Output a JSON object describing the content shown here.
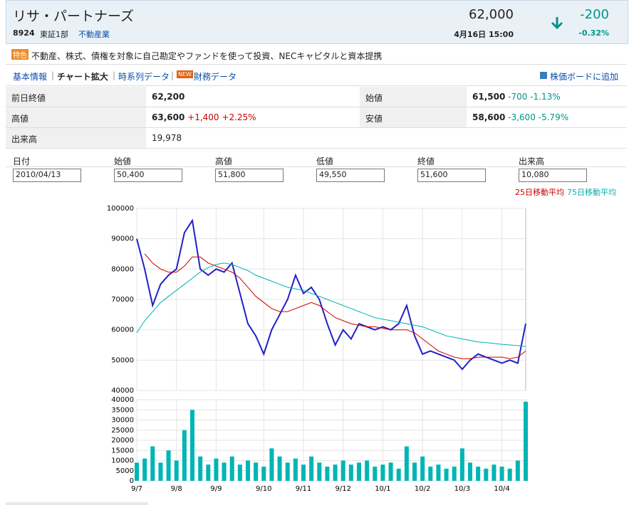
{
  "header": {
    "name": "リサ・パートナーズ",
    "code": "8924",
    "market": "東証1部",
    "industry": "不動産業",
    "price": "62,000",
    "change": "-200",
    "datetime": "4月16日 15:00",
    "change_pct": "-0.32%"
  },
  "feature": {
    "badge": "特色",
    "text": "不動産、株式、債権を対象に自己勘定やファンドを使って投資、NECキャピタルと資本提携"
  },
  "nav": {
    "links": [
      "基本情報",
      "チャート拡大",
      "時系列データ",
      "財務データ"
    ],
    "new_badge": "NEW",
    "board": "株価ボードに追加"
  },
  "quote_table": {
    "rows": [
      [
        {
          "label": "前日終値",
          "value": "62,200"
        },
        {
          "label": "始値",
          "value": "61,500",
          "change": "-700",
          "change_pct": "-1.13%"
        }
      ],
      [
        {
          "label": "高値",
          "value": "63,600",
          "change": "+1,400",
          "change_pct": "+2.25%"
        },
        {
          "label": "安値",
          "value": "58,600",
          "change": "-3,600",
          "change_pct": "-5.79%"
        }
      ],
      [
        {
          "label": "出来高",
          "value": "19,978"
        }
      ]
    ]
  },
  "ohlc_form": {
    "headers": [
      "日付",
      "始値",
      "高値",
      "低値",
      "終値",
      "出来高"
    ],
    "values": [
      "2010/04/13",
      "50,400",
      "51,800",
      "49,550",
      "51,600",
      "10,080"
    ]
  },
  "chart_data": [
    {
      "type": "line",
      "categories": [
        "9/7",
        null,
        null,
        null,
        null,
        "9/8",
        null,
        null,
        null,
        null,
        "9/9",
        null,
        null,
        null,
        null,
        null,
        "9/10",
        null,
        null,
        null,
        null,
        "9/11",
        null,
        null,
        null,
        null,
        "9/12",
        null,
        null,
        null,
        null,
        "10/1",
        null,
        null,
        null,
        null,
        "10/2",
        null,
        null,
        null,
        null,
        "10/3",
        null,
        null,
        null,
        null,
        "10/4",
        null,
        null,
        null
      ],
      "series": [
        {
          "color": "#2020c8",
          "values": [
            90000,
            80000,
            68000,
            75000,
            78000,
            80000,
            92000,
            96000,
            80000,
            78000,
            80000,
            79000,
            82000,
            72000,
            62000,
            58000,
            52000,
            60000,
            65000,
            70000,
            78000,
            72000,
            74000,
            70000,
            62000,
            55000,
            60000,
            57000,
            62000,
            61000,
            60000,
            61000,
            60000,
            62000,
            68000,
            58000,
            52000,
            53000,
            52000,
            51000,
            50000,
            47000,
            50000,
            52000,
            51000,
            50000,
            49000,
            50000,
            49000,
            62000
          ]
        },
        {
          "name": "25日移動平均",
          "color": "#cc0000",
          "values": [
            null,
            85000,
            82000,
            80000,
            79000,
            79000,
            81000,
            84000,
            84000,
            82000,
            81000,
            80000,
            79000,
            77000,
            74000,
            71000,
            69000,
            67000,
            66000,
            66000,
            67000,
            68000,
            69000,
            68000,
            66000,
            64000,
            63000,
            62000,
            61500,
            61000,
            61000,
            60500,
            60000,
            60000,
            60000,
            59000,
            57000,
            55000,
            53000,
            52000,
            51000,
            50500,
            50500,
            51000,
            51000,
            51000,
            51000,
            50500,
            51000,
            53000
          ]
        },
        {
          "name": "75日移動平均",
          "color": "#00b0b0",
          "values": [
            59000,
            63000,
            66000,
            69000,
            71000,
            73000,
            75000,
            77000,
            79000,
            80500,
            81500,
            82000,
            81500,
            80500,
            79500,
            78000,
            77000,
            76000,
            75000,
            74000,
            73500,
            73000,
            72000,
            71000,
            70000,
            69000,
            68000,
            67000,
            66000,
            65000,
            64000,
            63500,
            63000,
            62500,
            62000,
            61500,
            61000,
            60000,
            59000,
            58000,
            57500,
            57000,
            56500,
            56000,
            55800,
            55500,
            55200,
            55000,
            54800,
            54500
          ]
        }
      ],
      "ylim": [
        40000,
        100000
      ],
      "yticks": [
        40000,
        50000,
        60000,
        70000,
        80000,
        90000,
        100000
      ],
      "grid": true
    },
    {
      "type": "bar",
      "color": "#00b5b5",
      "values": [
        9000,
        11000,
        17000,
        9000,
        15000,
        10000,
        25000,
        35000,
        12000,
        8000,
        11000,
        9000,
        12000,
        8000,
        10000,
        9000,
        7000,
        16000,
        12000,
        9000,
        11000,
        8000,
        12000,
        9000,
        7000,
        8000,
        10000,
        8000,
        9000,
        10000,
        7000,
        8000,
        9000,
        6000,
        17000,
        9000,
        12000,
        7000,
        8000,
        6000,
        7000,
        16000,
        9000,
        7000,
        6000,
        8000,
        7000,
        6000,
        10000,
        39000
      ],
      "ylim": [
        0,
        40000
      ],
      "yticks": [
        0,
        5000,
        10000,
        15000,
        20000,
        25000,
        30000,
        35000,
        40000
      ],
      "grid": true
    }
  ]
}
